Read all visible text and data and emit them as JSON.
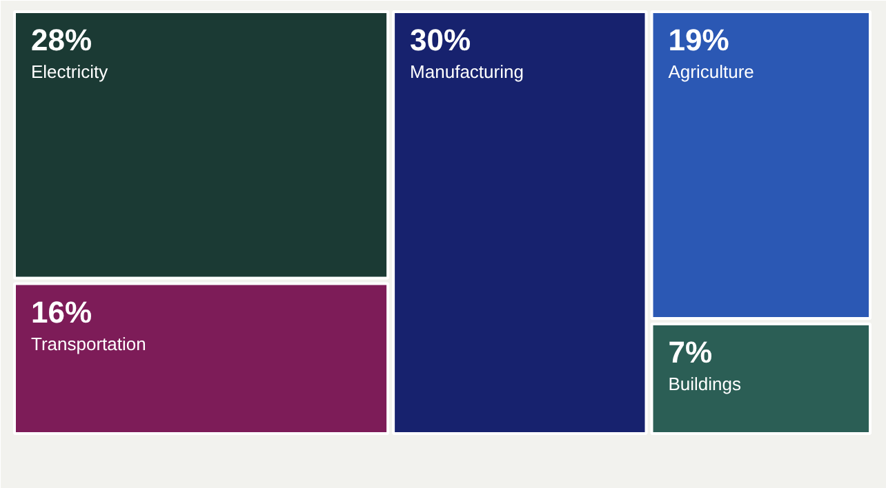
{
  "chart_data": {
    "type": "other",
    "categories": [
      "Electricity",
      "Transportation",
      "Manufacturing",
      "Agriculture",
      "Buildings"
    ],
    "values": [
      28,
      16,
      30,
      19,
      7
    ],
    "value_labels": [
      "28%",
      "16%",
      "30%",
      "19%",
      "7%"
    ],
    "colors": [
      "#1b3a34",
      "#7d1c58",
      "#17226e",
      "#2b58b4",
      "#2b5e55"
    ],
    "data_labels": true
  }
}
